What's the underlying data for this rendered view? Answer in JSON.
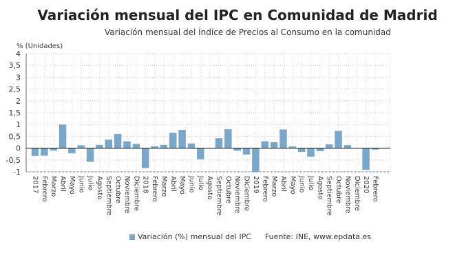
{
  "chart_data": {
    "type": "bar",
    "title": "Variación mensual del IPC en Comunidad de Madrid",
    "subtitle": "Variación mensual del Índice de Precios al Consumo en la comunidad",
    "ylabel": "% (Unidades)",
    "xlabel": "",
    "ylim": [
      -1,
      4
    ],
    "yticks": [
      "-1",
      "-0,5",
      "0",
      "0,5",
      "1",
      "1,5",
      "2",
      "2,5",
      "3",
      "3,5",
      "4"
    ],
    "grid": true,
    "legend": "bottom",
    "color": "#7aa7c9",
    "categories": [
      "2017",
      "Febrero",
      "Marzo",
      "Abril",
      "Mayo",
      "Junio",
      "Julio",
      "Agosto",
      "Septiembre",
      "Octubre",
      "Noviembre",
      "Diciembre",
      "2018",
      "Febrero",
      "Marzo",
      "Abril",
      "Mayo",
      "Junio",
      "Julio",
      "Agosto",
      "Septiembre",
      "Octubre",
      "Noviembre",
      "Diciembre",
      "2019",
      "Febrero",
      "Marzo",
      "Abril",
      "Mayo",
      "Junio",
      "Julio",
      "Agosto",
      "Septiembre",
      "Octubre",
      "Noviembre",
      "Diciembre",
      "2020",
      "Febrero"
    ],
    "series": [
      {
        "name": "Variación (%) mensual del IPC",
        "values": [
          -0.33,
          -0.32,
          -0.1,
          1.0,
          -0.22,
          0.12,
          -0.58,
          0.14,
          0.36,
          0.6,
          0.29,
          0.18,
          -0.84,
          0.08,
          0.14,
          0.65,
          0.77,
          0.2,
          -0.47,
          0,
          0.42,
          0.8,
          -0.11,
          -0.27,
          -1.0,
          0.29,
          0.25,
          0.79,
          0.07,
          -0.16,
          -0.36,
          -0.13,
          0.16,
          0.73,
          0.13,
          0,
          -0.92,
          -0.06
        ]
      }
    ],
    "source": "Fuente: INE, www.epdata.es"
  }
}
